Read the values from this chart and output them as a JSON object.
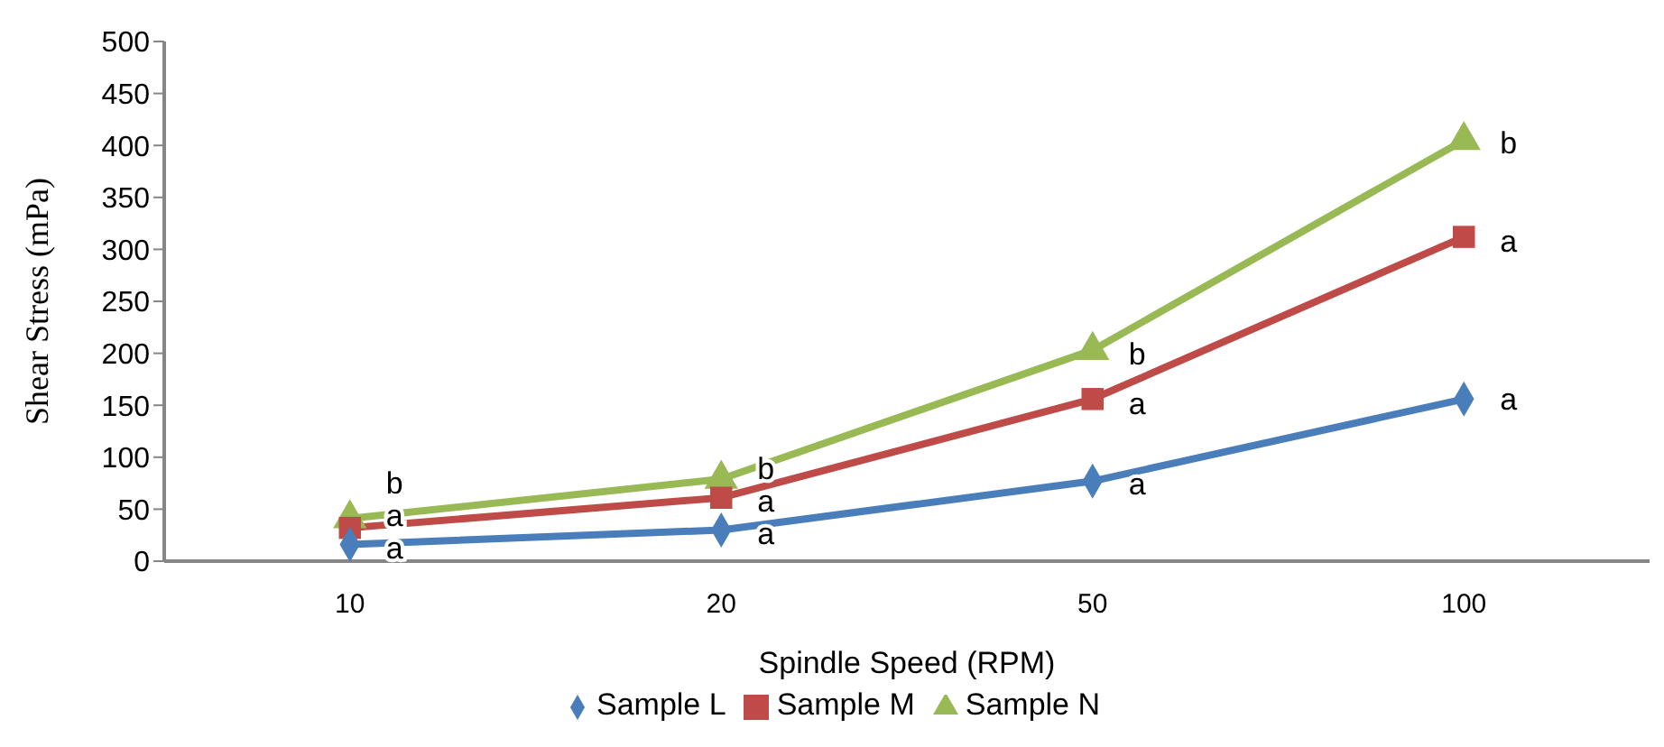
{
  "chart_data": {
    "type": "line",
    "xlabel": "Spindle Speed (RPM)",
    "ylabel": "Shear Stress (mPa)",
    "categories": [
      "10",
      "20",
      "50",
      "100"
    ],
    "series": [
      {
        "name": "Sample L",
        "color": "#4a7ebb",
        "marker": "diamond",
        "values": [
          16,
          30,
          77,
          156
        ]
      },
      {
        "name": "Sample M",
        "color": "#be4b48",
        "marker": "square",
        "values": [
          32,
          61,
          156,
          312
        ]
      },
      {
        "name": "Sample N",
        "color": "#98b954",
        "marker": "triangle",
        "values": [
          41,
          79,
          203,
          405
        ]
      }
    ],
    "ylim": [
      0,
      500
    ],
    "yticks": [
      0,
      50,
      100,
      150,
      200,
      250,
      300,
      350,
      400,
      450,
      500
    ],
    "grid": false,
    "legend": "bottom",
    "annotations": [
      {
        "text": "b",
        "x": "10",
        "y": 39
      },
      {
        "text": "a",
        "x": "10",
        "y": 25
      },
      {
        "text": "a",
        "x": "10",
        "y": 13
      },
      {
        "text": "b",
        "x": "20",
        "y": 79
      },
      {
        "text": "a",
        "x": "20",
        "y": 57
      },
      {
        "text": "a",
        "x": "20",
        "y": 27
      },
      {
        "text": "b",
        "x": "50",
        "y": 200
      },
      {
        "text": "a",
        "x": "50",
        "y": 152
      },
      {
        "text": "a",
        "x": "50",
        "y": 75
      },
      {
        "text": "b",
        "x": "100",
        "y": 403
      },
      {
        "text": "a",
        "x": "100",
        "y": 308
      },
      {
        "text": "a",
        "x": "100",
        "y": 156
      }
    ]
  }
}
